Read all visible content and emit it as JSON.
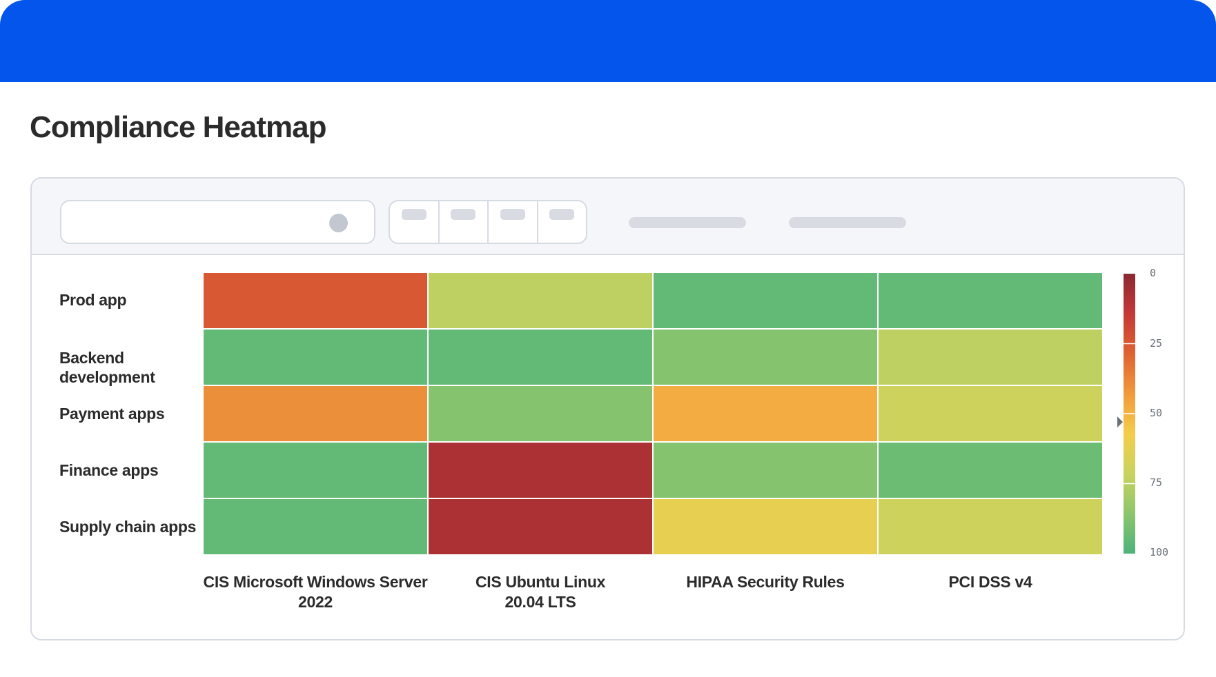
{
  "title": "Compliance Heatmap",
  "colors": {
    "header_bar": "#0455eb",
    "panel_border": "#d6dbe3",
    "toolbar_bg": "#f4f6fa",
    "placeholder_gray": "#d8dce2"
  },
  "toolbar": {
    "search_icon": "search-icon",
    "segments": [
      "",
      "",
      "",
      ""
    ],
    "filters": [
      "",
      ""
    ]
  },
  "chart_data": {
    "type": "heatmap",
    "rows": [
      "Prod app",
      "Backend development",
      "Payment apps",
      "Finance apps",
      "Supply chain apps"
    ],
    "columns": [
      "CIS Microsoft Windows Server 2022",
      "CIS Ubuntu Linux 20.04 LTS",
      "HIPAA Security Rules",
      "PCI DSS v4"
    ],
    "values": [
      [
        25,
        74,
        95,
        95
      ],
      [
        95,
        95,
        87,
        74
      ],
      [
        40,
        87,
        48,
        70
      ],
      [
        95,
        8,
        87,
        93
      ],
      [
        95,
        8,
        62,
        70
      ]
    ],
    "scale": {
      "min": 0,
      "max": 100,
      "ticks": [
        "0",
        "25",
        "50",
        "75",
        "100"
      ],
      "colors": [
        "#8a2932",
        "#c63838",
        "#de6331",
        "#f09a3c",
        "#f5cd4a",
        "#c9d35f",
        "#8cc56d",
        "#4db37b"
      ],
      "marker_value": 53
    }
  }
}
